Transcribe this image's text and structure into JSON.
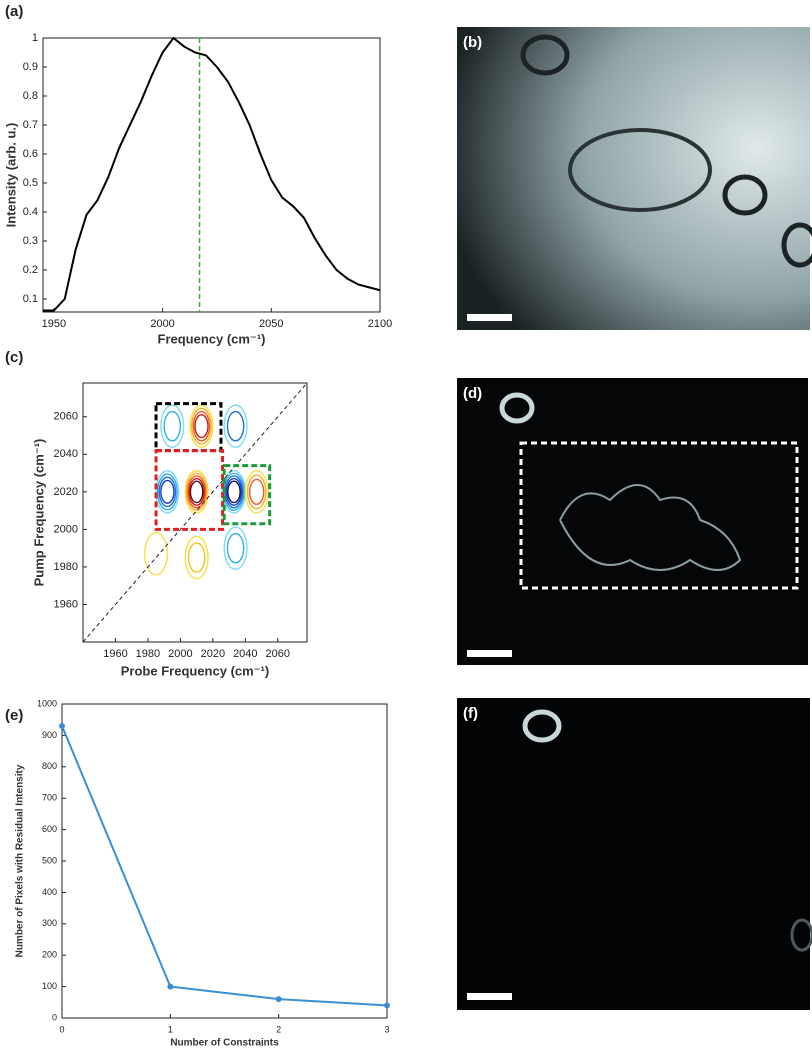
{
  "images": [
    {
      "panel": "(b)"
    },
    {
      "panel": "(d)"
    },
    {
      "panel": "(f)"
    }
  ],
  "chart_data": [
    {
      "type": "line",
      "panel": "(a)",
      "xlabel": "Frequency (cm⁻¹)",
      "ylabel": "Intensity (arb. u.)",
      "x": [
        1945,
        1950,
        1955,
        1960,
        1965,
        1970,
        1975,
        1980,
        1985,
        1990,
        1995,
        2000,
        2005,
        2010,
        2015,
        2020,
        2025,
        2030,
        2035,
        2040,
        2045,
        2050,
        2055,
        2060,
        2065,
        2070,
        2075,
        2080,
        2085,
        2090,
        2095,
        2100
      ],
      "values": [
        0.06,
        0.06,
        0.1,
        0.27,
        0.39,
        0.44,
        0.52,
        0.62,
        0.7,
        0.78,
        0.87,
        0.95,
        1.0,
        0.97,
        0.95,
        0.94,
        0.9,
        0.85,
        0.78,
        0.7,
        0.6,
        0.51,
        0.45,
        0.42,
        0.38,
        0.31,
        0.25,
        0.2,
        0.17,
        0.15,
        0.14,
        0.13
      ],
      "color": "#000000",
      "xlim": [
        1945,
        2100
      ],
      "ylim": [
        0.055,
        1.0
      ],
      "xticks": [
        1950,
        2000,
        2050,
        2100
      ],
      "yticks": [
        0.1,
        0.2,
        0.3,
        0.4,
        0.5,
        0.6,
        0.7,
        0.8,
        0.9,
        1
      ],
      "vline": {
        "value": 2017,
        "color": "#2db82d"
      }
    },
    {
      "type": "contour",
      "panel": "(c)",
      "xlabel": "Probe Frequency (cm⁻¹)",
      "ylabel": "Pump Frequency (cm⁻¹)",
      "xlim": [
        1940,
        2078
      ],
      "ylim": [
        1940,
        2078
      ],
      "xticks": [
        1960,
        1980,
        2000,
        2020,
        2040,
        2060
      ],
      "yticks": [
        1960,
        1980,
        2000,
        2020,
        2040,
        2060
      ],
      "diagonal": true,
      "boxes": [
        {
          "x": [
            1985,
            2025
          ],
          "y": [
            2042,
            2067
          ],
          "color": "#000000"
        },
        {
          "x": [
            1985,
            2026
          ],
          "y": [
            2000,
            2042
          ],
          "color": "#e02020"
        },
        {
          "x": [
            2027,
            2055
          ],
          "y": [
            2003,
            2034
          ],
          "color": "#1a9a3a"
        }
      ],
      "peaks": [
        {
          "x": 1992,
          "y": 2020,
          "colors": [
            "#7fdcf0",
            "#2fb0e8",
            "#1f70d8",
            "#1a3fc0"
          ]
        },
        {
          "x": 2010,
          "y": 2020,
          "colors": [
            "#f4e04a",
            "#f7b020",
            "#f05a20",
            "#d01818",
            "#4a1010"
          ]
        },
        {
          "x": 2013,
          "y": 2055,
          "colors": [
            "#f4e04a",
            "#f7b020",
            "#f05a20",
            "#c81818"
          ]
        },
        {
          "x": 1995,
          "y": 2055,
          "colors": [
            "#7fdcf0",
            "#2fb0e8"
          ]
        },
        {
          "x": 2033,
          "y": 2020,
          "colors": [
            "#7fdcf0",
            "#2fb0e8",
            "#1f70d8",
            "#1a3fc0",
            "#101060"
          ]
        },
        {
          "x": 2047,
          "y": 2020,
          "colors": [
            "#f4e04a",
            "#f7b020",
            "#f05a20"
          ]
        },
        {
          "x": 2034,
          "y": 2055,
          "colors": [
            "#7fdcf0",
            "#1f70d8"
          ]
        },
        {
          "x": 2034,
          "y": 1990,
          "colors": [
            "#7fdcf0",
            "#2fb0e8"
          ]
        },
        {
          "x": 2010,
          "y": 1985,
          "colors": [
            "#f4e04a",
            "#f7c020"
          ]
        },
        {
          "x": 1985,
          "y": 1987,
          "colors": [
            "#f4e04a"
          ]
        }
      ]
    },
    {
      "type": "line",
      "panel": "(e)",
      "xlabel": "Number of Constraints",
      "ylabel": "Number of Pixels with Residual Intensity",
      "x": [
        0,
        1,
        2,
        3
      ],
      "values": [
        930,
        100,
        60,
        40
      ],
      "color": "#3a8fd4",
      "markers": true,
      "xlim": [
        0,
        3
      ],
      "ylim": [
        0,
        1000
      ],
      "xticks": [
        0,
        1,
        2,
        3
      ],
      "yticks": [
        0,
        100,
        200,
        300,
        400,
        500,
        600,
        700,
        800,
        900,
        1000
      ]
    }
  ]
}
